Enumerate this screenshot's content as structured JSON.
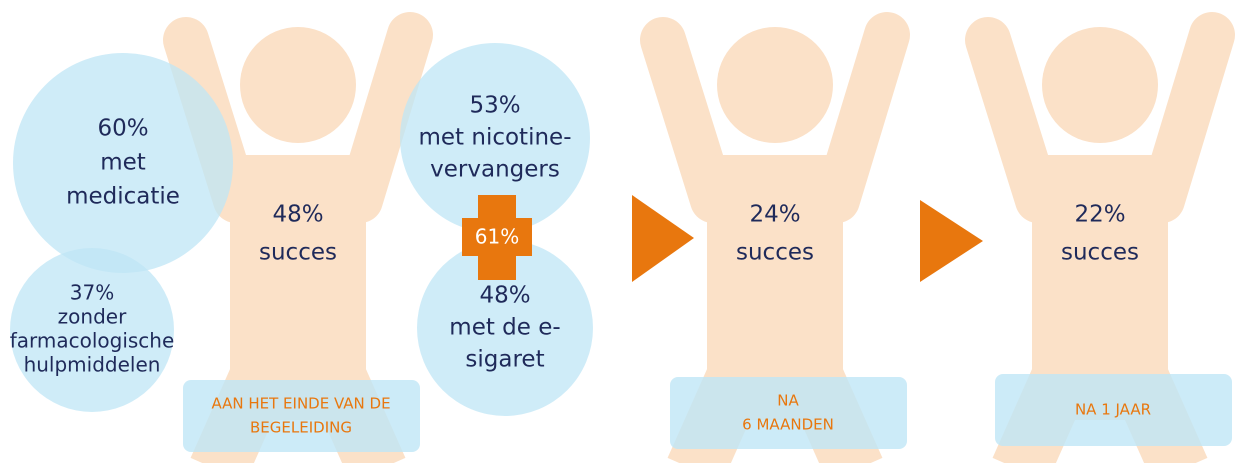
{
  "circles": [
    {
      "lines": [
        "60%",
        "met",
        "medicatie"
      ]
    },
    {
      "lines": [
        "37%",
        "zonder",
        "farmacologische",
        "hulpmiddelen"
      ]
    },
    {
      "lines": [
        "53%",
        "met nicotine-",
        "vervangers"
      ]
    },
    {
      "lines": [
        "48%",
        "met de e-",
        "sigaret"
      ]
    }
  ],
  "plus": {
    "label": "61%"
  },
  "figures": [
    {
      "lines": [
        "48%",
        "succes"
      ],
      "caption": [
        "AAN HET EINDE VAN DE",
        "BEGELEIDING"
      ]
    },
    {
      "lines": [
        "24%",
        "succes"
      ],
      "caption": [
        "NA",
        "6 MAANDEN"
      ]
    },
    {
      "lines": [
        "22%",
        "succes"
      ],
      "caption": [
        "NA 1 JAAR"
      ]
    }
  ]
}
